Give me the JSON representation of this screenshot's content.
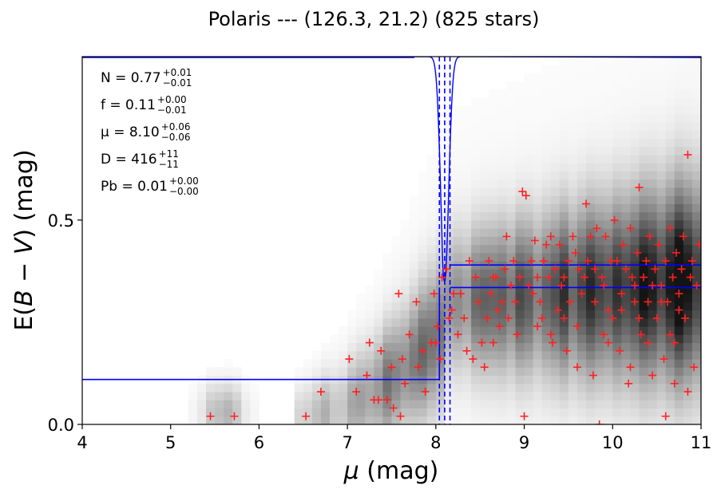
{
  "chart_data": {
    "type": "scatter",
    "title": "Polaris --- (126.3, 21.2) (825 stars)",
    "xlabel_var": "μ",
    "xlabel_unit": " (mag)",
    "ylabel_prefix": "E(",
    "ylabel_var1": "B",
    "ylabel_minus": " − ",
    "ylabel_var2": "V",
    "ylabel_suffix": ") (mag)",
    "xlim": [
      4,
      11
    ],
    "ylim": [
      0,
      0.9
    ],
    "xticks": [
      "4",
      "5",
      "6",
      "7",
      "8",
      "9",
      "10",
      "11"
    ],
    "yticks": [
      "0.0",
      "0.5"
    ],
    "xtick_values": [
      4,
      5,
      6,
      7,
      8,
      9,
      10,
      11
    ],
    "ytick_values": [
      0,
      0.5
    ],
    "annotations": [
      {
        "name": "N",
        "main": "N = 0.77",
        "sup": "+0.01",
        "sub": "−0.01"
      },
      {
        "name": "f",
        "main": "f = 0.11",
        "sup": "+0.00",
        "sub": "−0.01"
      },
      {
        "name": "mu",
        "main": "μ = 8.10",
        "sup": "+0.06",
        "sub": "−0.06"
      },
      {
        "name": "D",
        "main": "D = 416",
        "sup": "+11",
        "sub": "−11"
      },
      {
        "name": "Pb",
        "main": "Pb = 0.01",
        "sup": "+0.00",
        "sub": "−0.00"
      }
    ],
    "colors": {
      "points": "#ff2020",
      "model": "#0000ff",
      "density": "#000000"
    },
    "model_step": {
      "mu": 8.1,
      "low_level": 0.11,
      "high_level_lower": 0.335,
      "high_level_upper": 0.39
    },
    "vlines": [
      8.04,
      8.1,
      8.16
    ],
    "stars": [
      [
        5.45,
        0.02
      ],
      [
        5.72,
        0.02
      ],
      [
        6.53,
        0.02
      ],
      [
        6.7,
        0.08
      ],
      [
        7.02,
        0.16
      ],
      [
        7.1,
        0.08
      ],
      [
        7.22,
        0.12
      ],
      [
        7.25,
        0.2
      ],
      [
        7.3,
        0.06
      ],
      [
        7.35,
        0.06
      ],
      [
        7.38,
        0.18
      ],
      [
        7.45,
        0.06
      ],
      [
        7.5,
        0.14
      ],
      [
        7.52,
        0.04
      ],
      [
        7.6,
        0.02
      ],
      [
        7.58,
        0.32
      ],
      [
        7.62,
        0.16
      ],
      [
        7.65,
        0.1
      ],
      [
        7.7,
        0.22
      ],
      [
        7.78,
        0.3
      ],
      [
        7.8,
        0.14
      ],
      [
        7.85,
        0.18
      ],
      [
        7.88,
        0.08
      ],
      [
        7.95,
        0.2
      ],
      [
        7.98,
        0.32
      ],
      [
        8.0,
        0.2
      ],
      [
        8.02,
        0.24
      ],
      [
        8.05,
        0.16
      ],
      [
        8.07,
        0.36
      ],
      [
        8.12,
        0.38
      ],
      [
        8.15,
        0.26
      ],
      [
        8.18,
        0.28
      ],
      [
        8.2,
        0.32
      ],
      [
        8.25,
        0.22
      ],
      [
        8.28,
        0.32
      ],
      [
        8.32,
        0.26
      ],
      [
        8.35,
        0.18
      ],
      [
        8.38,
        0.4
      ],
      [
        8.42,
        0.16
      ],
      [
        8.45,
        0.36
      ],
      [
        8.48,
        0.3
      ],
      [
        8.52,
        0.2
      ],
      [
        8.55,
        0.14
      ],
      [
        8.58,
        0.26
      ],
      [
        8.6,
        0.4
      ],
      [
        8.62,
        0.32
      ],
      [
        8.65,
        0.36
      ],
      [
        8.68,
        0.36
      ],
      [
        8.7,
        0.28
      ],
      [
        8.72,
        0.24
      ],
      [
        8.75,
        0.3
      ],
      [
        8.78,
        0.38
      ],
      [
        8.8,
        0.46
      ],
      [
        8.82,
        0.26
      ],
      [
        8.85,
        0.34
      ],
      [
        8.88,
        0.4
      ],
      [
        8.9,
        0.3
      ],
      [
        8.92,
        0.22
      ],
      [
        8.95,
        0.36
      ],
      [
        8.98,
        0.57
      ],
      [
        9.0,
        0.02
      ],
      [
        9.02,
        0.56
      ],
      [
        9.05,
        0.34
      ],
      [
        9.08,
        0.4
      ],
      [
        9.1,
        0.32
      ],
      [
        9.12,
        0.45
      ],
      [
        9.15,
        0.36
      ],
      [
        9.18,
        0.3
      ],
      [
        9.2,
        0.26
      ],
      [
        9.22,
        0.4
      ],
      [
        9.25,
        0.44
      ],
      [
        9.28,
        0.36
      ],
      [
        9.3,
        0.46
      ],
      [
        9.32,
        0.2
      ],
      [
        9.35,
        0.38
      ],
      [
        9.38,
        0.28
      ],
      [
        9.4,
        0.44
      ],
      [
        9.42,
        0.34
      ],
      [
        9.45,
        0.36
      ],
      [
        9.48,
        0.18
      ],
      [
        9.5,
        0.4
      ],
      [
        9.52,
        0.3
      ],
      [
        9.55,
        0.46
      ],
      [
        9.58,
        0.42
      ],
      [
        9.6,
        0.24
      ],
      [
        9.62,
        0.38
      ],
      [
        9.65,
        0.32
      ],
      [
        9.68,
        0.36
      ],
      [
        9.7,
        0.54
      ],
      [
        9.72,
        0.4
      ],
      [
        9.75,
        0.46
      ],
      [
        9.78,
        0.12
      ],
      [
        9.8,
        0.3
      ],
      [
        9.82,
        0.48
      ],
      [
        9.85,
        0.0
      ],
      [
        9.88,
        0.36
      ],
      [
        9.9,
        0.34
      ],
      [
        9.92,
        0.46
      ],
      [
        9.95,
        0.28
      ],
      [
        9.98,
        0.4
      ],
      [
        10.0,
        0.26
      ],
      [
        10.02,
        0.5
      ],
      [
        10.05,
        0.4
      ],
      [
        10.08,
        0.18
      ],
      [
        10.1,
        0.32
      ],
      [
        10.12,
        0.44
      ],
      [
        10.15,
        0.38
      ],
      [
        10.18,
        0.1
      ],
      [
        10.2,
        0.48
      ],
      [
        10.22,
        0.36
      ],
      [
        10.25,
        0.3
      ],
      [
        10.28,
        0.42
      ],
      [
        10.3,
        0.58
      ],
      [
        10.32,
        0.22
      ],
      [
        10.35,
        0.36
      ],
      [
        10.38,
        0.4
      ],
      [
        10.4,
        0.3
      ],
      [
        10.42,
        0.46
      ],
      [
        10.45,
        0.12
      ],
      [
        10.48,
        0.38
      ],
      [
        10.5,
        0.26
      ],
      [
        10.52,
        0.44
      ],
      [
        10.55,
        0.34
      ],
      [
        10.58,
        0.16
      ],
      [
        10.6,
        0.4
      ],
      [
        10.62,
        0.3
      ],
      [
        10.65,
        0.48
      ],
      [
        10.68,
        0.36
      ],
      [
        10.7,
        0.2
      ],
      [
        10.72,
        0.42
      ],
      [
        10.75,
        0.32
      ],
      [
        10.78,
        0.38
      ],
      [
        10.8,
        0.46
      ],
      [
        10.82,
        0.26
      ],
      [
        10.85,
        0.66
      ],
      [
        10.88,
        0.36
      ],
      [
        10.9,
        0.4
      ],
      [
        10.92,
        0.14
      ],
      [
        10.95,
        0.34
      ],
      [
        10.98,
        0.44
      ],
      [
        10.6,
        0.02
      ],
      [
        10.4,
        0.2
      ],
      [
        10.2,
        0.14
      ],
      [
        9.9,
        0.22
      ],
      [
        9.6,
        0.14
      ],
      [
        9.3,
        0.22
      ],
      [
        10.7,
        0.1
      ],
      [
        10.85,
        0.08
      ],
      [
        10.3,
        0.26
      ],
      [
        9.8,
        0.38
      ],
      [
        10.55,
        0.3
      ],
      [
        10.25,
        0.34
      ],
      [
        10.1,
        0.28
      ],
      [
        9.95,
        0.2
      ],
      [
        10.65,
        0.22
      ],
      [
        10.45,
        0.34
      ],
      [
        10.75,
        0.28
      ],
      [
        9.45,
        0.26
      ],
      [
        9.15,
        0.24
      ],
      [
        8.65,
        0.2
      ]
    ]
  }
}
